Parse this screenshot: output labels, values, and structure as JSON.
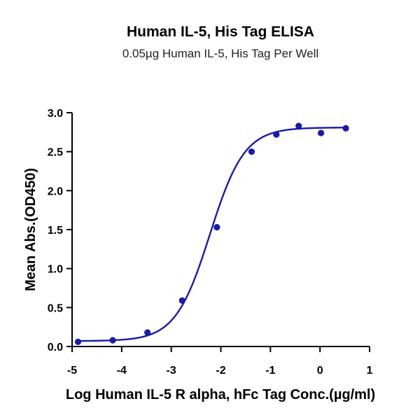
{
  "chart_data": {
    "type": "scatter",
    "title": "Human IL-5, His Tag ELISA",
    "subtitle": "0.05µg Human IL-5, His Tag Per Well",
    "xlabel": "Log Human IL-5 R alpha, hFc Tag Conc.(µg/ml)",
    "ylabel": "Mean Abs.(OD450)",
    "xlim": [
      -5,
      1
    ],
    "ylim": [
      0,
      3.0
    ],
    "xticks": [
      -5,
      -4,
      -3,
      -2,
      -1,
      0,
      1
    ],
    "yticks": [
      0.0,
      0.5,
      1.0,
      1.5,
      2.0,
      2.5,
      3.0
    ],
    "xtick_labels": [
      "-5",
      "-4",
      "-3",
      "-2",
      "-1",
      "0",
      "1"
    ],
    "ytick_labels": [
      "0.0",
      "0.5",
      "1.0",
      "1.5",
      "2.0",
      "2.5",
      "3.0"
    ],
    "grid": false,
    "legend": "none",
    "color": "#1a1aa8",
    "series": [
      {
        "x": [
          -4.88,
          -4.18,
          -3.48,
          -2.78,
          -2.08,
          -1.38,
          -0.88,
          -0.43,
          0.02,
          0.52
        ],
        "y": [
          0.06,
          0.08,
          0.18,
          0.59,
          1.53,
          2.5,
          2.72,
          2.83,
          2.74,
          2.8
        ]
      }
    ],
    "fit": {
      "model": "4PL",
      "bottom": 0.07,
      "top": 2.81,
      "log_ec50": -2.22,
      "hill": 1.25,
      "x_range": [
        -4.88,
        0.52
      ]
    }
  }
}
